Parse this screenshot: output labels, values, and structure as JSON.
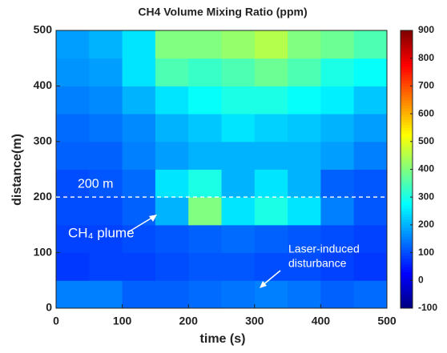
{
  "chart_data": {
    "type": "heatmap",
    "title": "CH4 Volume Mixing Ratio (ppm)",
    "x_label": "time (s)",
    "y_label": "distance(m)",
    "xlim": [
      0,
      500
    ],
    "ylim": [
      0,
      500
    ],
    "xticks": [
      0,
      100,
      200,
      300,
      400,
      500
    ],
    "yticks": [
      0,
      100,
      200,
      300,
      400,
      500
    ],
    "x_bins": [
      0,
      50,
      100,
      150,
      200,
      250,
      300,
      350,
      400,
      450,
      500
    ],
    "y_bins": [
      0,
      50,
      100,
      150,
      200,
      250,
      300,
      350,
      400,
      450,
      500
    ],
    "z": [
      [
        150,
        150,
        120,
        120,
        130,
        140,
        150,
        140,
        120,
        130
      ],
      [
        80,
        90,
        90,
        100,
        110,
        110,
        100,
        100,
        90,
        80
      ],
      [
        90,
        90,
        100,
        110,
        120,
        130,
        120,
        110,
        100,
        90
      ],
      [
        100,
        100,
        120,
        200,
        400,
        250,
        300,
        250,
        150,
        110
      ],
      [
        100,
        110,
        130,
        250,
        300,
        200,
        250,
        200,
        120,
        110
      ],
      [
        120,
        120,
        150,
        180,
        200,
        200,
        200,
        200,
        180,
        150
      ],
      [
        130,
        140,
        160,
        200,
        220,
        250,
        230,
        220,
        200,
        180
      ],
      [
        150,
        160,
        200,
        250,
        280,
        300,
        300,
        280,
        260,
        220
      ],
      [
        170,
        180,
        250,
        350,
        330,
        350,
        380,
        350,
        300,
        280
      ],
      [
        180,
        200,
        250,
        400,
        400,
        420,
        450,
        400,
        380,
        350
      ]
    ],
    "colorbar": {
      "lim": [
        -100,
        900
      ],
      "ticks": [
        -100,
        0,
        100,
        200,
        300,
        400,
        500,
        600,
        700,
        800,
        900
      ],
      "colormap": "jet"
    },
    "reference_line": {
      "value": 200,
      "label": "200 m"
    },
    "annotations": [
      "CH₄ plume",
      "Laser-induced",
      "disturbance"
    ]
  }
}
